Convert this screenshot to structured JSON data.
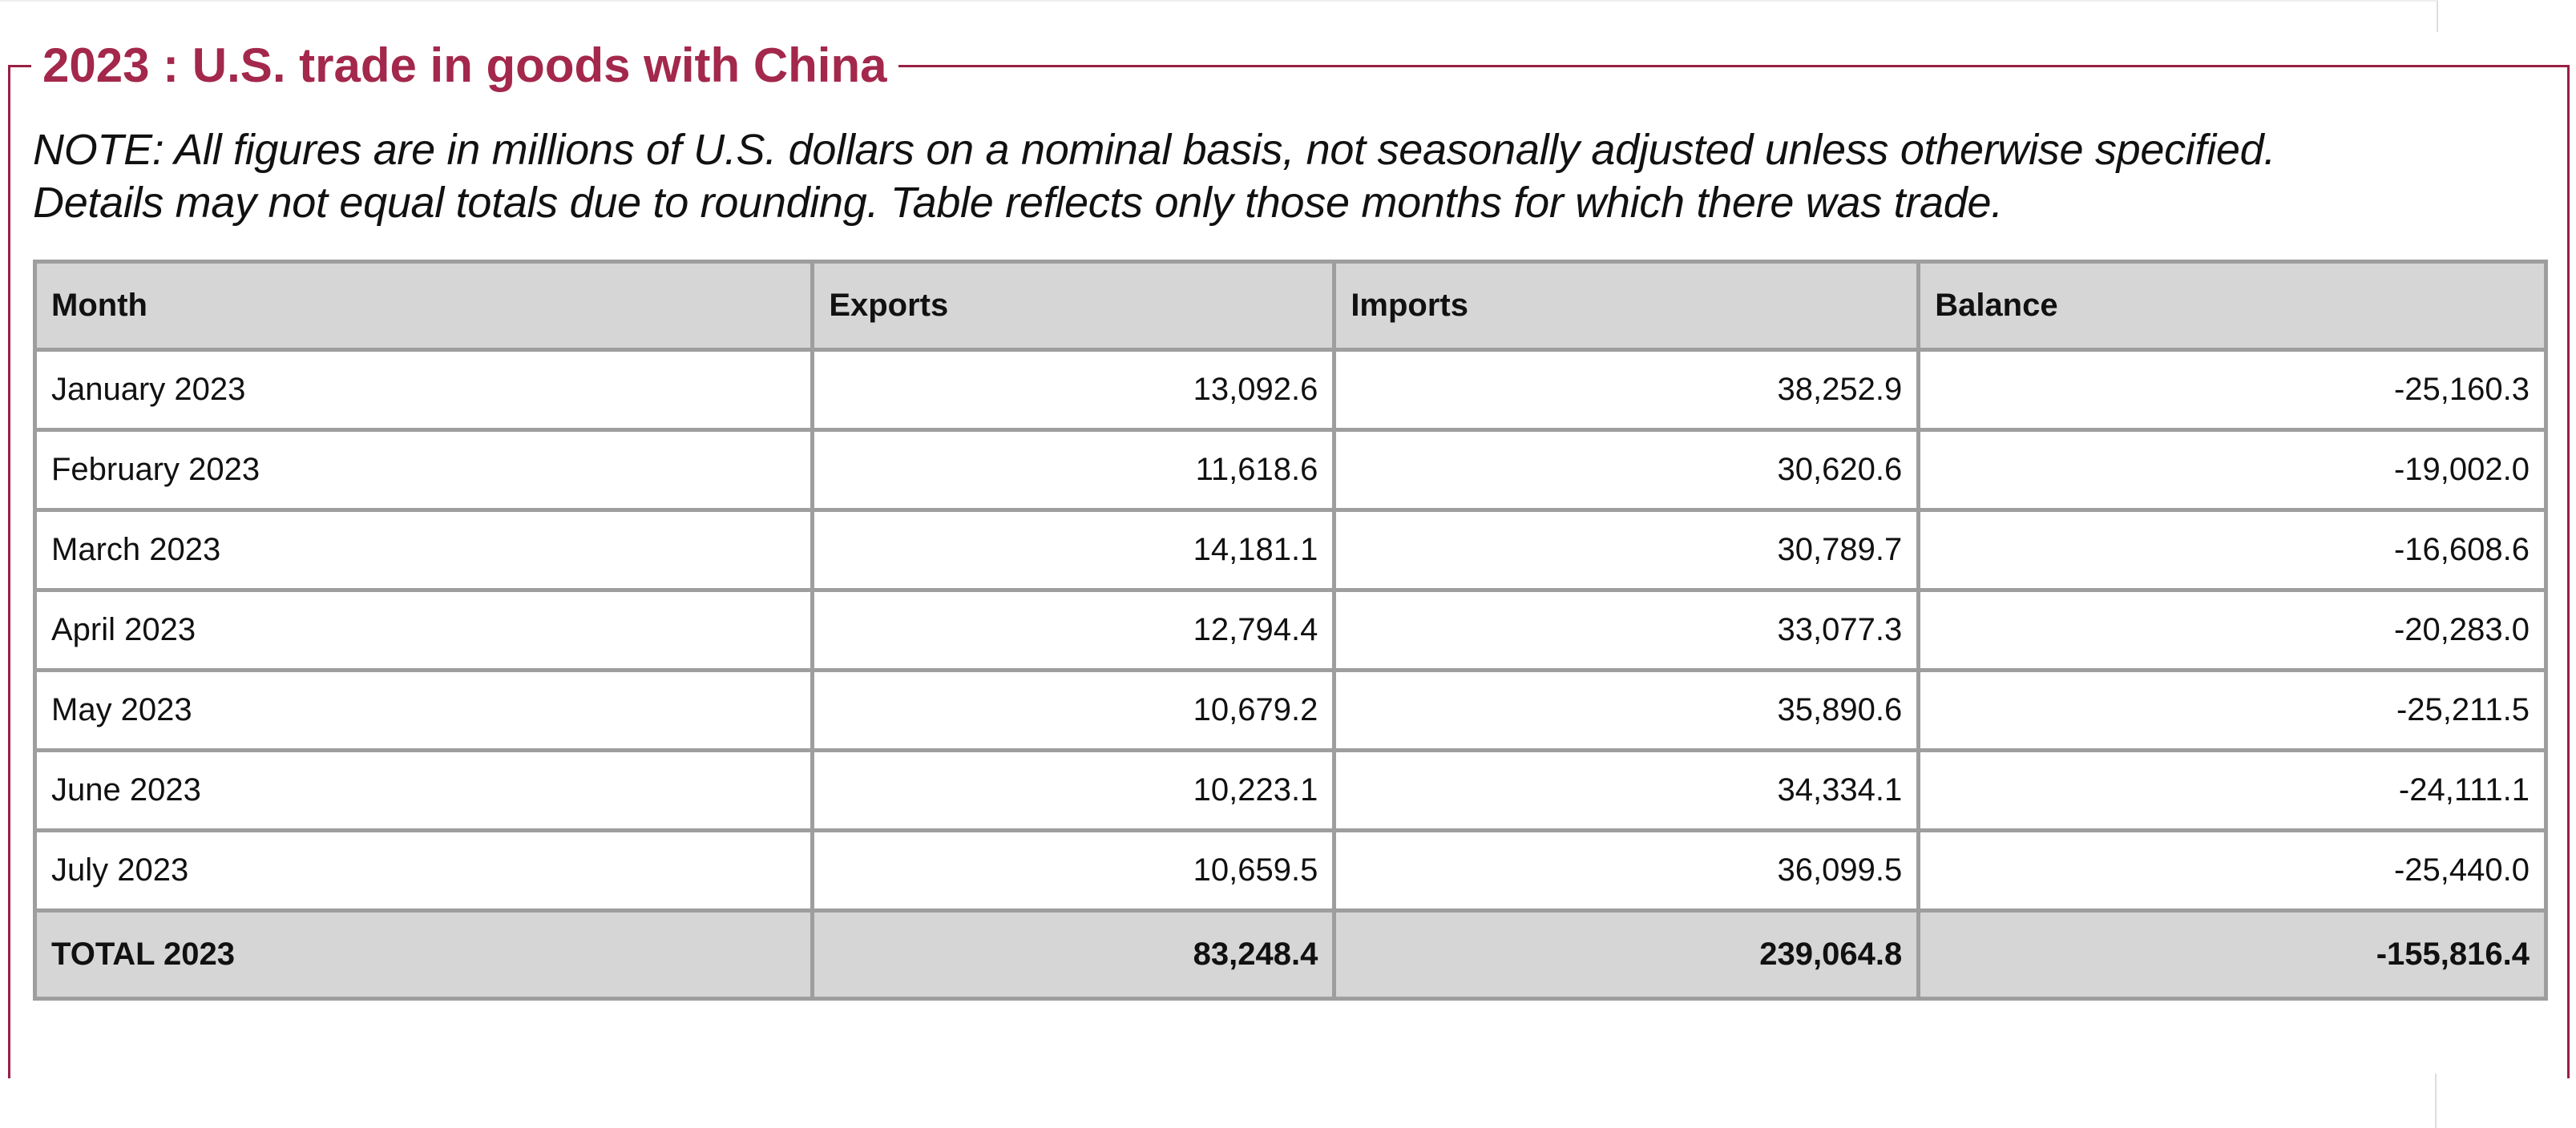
{
  "panel": {
    "title": "2023 : U.S. trade in goods with China",
    "note_line1": "NOTE: All figures are in millions of U.S. dollars on a nominal basis, not seasonally adjusted unless otherwise specified.",
    "note_line2": "Details may not equal totals due to rounding. Table reflects only those months for which there was trade."
  },
  "table": {
    "headers": {
      "month": "Month",
      "exports": "Exports",
      "imports": "Imports",
      "balance": "Balance"
    },
    "rows": [
      {
        "month": "January 2023",
        "exports": "13,092.6",
        "imports": "38,252.9",
        "balance": "-25,160.3"
      },
      {
        "month": "February 2023",
        "exports": "11,618.6",
        "imports": "30,620.6",
        "balance": "-19,002.0"
      },
      {
        "month": "March 2023",
        "exports": "14,181.1",
        "imports": "30,789.7",
        "balance": "-16,608.6"
      },
      {
        "month": "April 2023",
        "exports": "12,794.4",
        "imports": "33,077.3",
        "balance": "-20,283.0"
      },
      {
        "month": "May 2023",
        "exports": "10,679.2",
        "imports": "35,890.6",
        "balance": "-25,211.5"
      },
      {
        "month": "June 2023",
        "exports": "10,223.1",
        "imports": "34,334.1",
        "balance": "-24,111.1"
      },
      {
        "month": "July 2023",
        "exports": "10,659.5",
        "imports": "36,099.5",
        "balance": "-25,440.0"
      }
    ],
    "total": {
      "month": "TOTAL 2023",
      "exports": "83,248.4",
      "imports": "239,064.8",
      "balance": "-155,816.4"
    }
  },
  "colors": {
    "accent": "#a3284b",
    "header_bg": "#d6d6d6",
    "border": "#9e9e9e"
  }
}
